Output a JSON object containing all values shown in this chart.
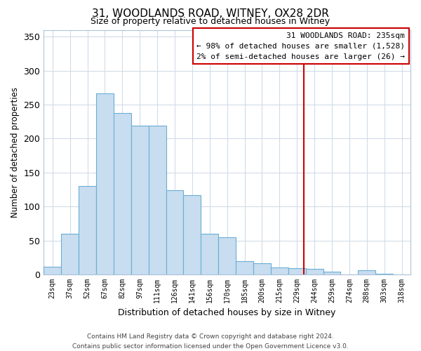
{
  "title": "31, WOODLANDS ROAD, WITNEY, OX28 2DR",
  "subtitle": "Size of property relative to detached houses in Witney",
  "xlabel": "Distribution of detached houses by size in Witney",
  "ylabel": "Number of detached properties",
  "bar_labels": [
    "23sqm",
    "37sqm",
    "52sqm",
    "67sqm",
    "82sqm",
    "97sqm",
    "111sqm",
    "126sqm",
    "141sqm",
    "156sqm",
    "170sqm",
    "185sqm",
    "200sqm",
    "215sqm",
    "229sqm",
    "244sqm",
    "259sqm",
    "274sqm",
    "288sqm",
    "303sqm",
    "318sqm"
  ],
  "bar_values": [
    11,
    60,
    130,
    267,
    238,
    219,
    219,
    124,
    117,
    60,
    55,
    20,
    17,
    10,
    9,
    8,
    4,
    0,
    6,
    1,
    0
  ],
  "bar_color": "#c8ddef",
  "bar_edge_color": "#6aaed6",
  "ylim": [
    0,
    360
  ],
  "yticks": [
    0,
    50,
    100,
    150,
    200,
    250,
    300,
    350
  ],
  "property_line_color": "#cc0000",
  "annotation_title": "31 WOODLANDS ROAD: 235sqm",
  "annotation_line1": "← 98% of detached houses are smaller (1,528)",
  "annotation_line2": "2% of semi-detached houses are larger (26) →",
  "annotation_box_color": "#cc0000",
  "footer1": "Contains HM Land Registry data © Crown copyright and database right 2024.",
  "footer2": "Contains public sector information licensed under the Open Government Licence v3.0.",
  "background_color": "#ffffff",
  "grid_color": "#d0dce8"
}
